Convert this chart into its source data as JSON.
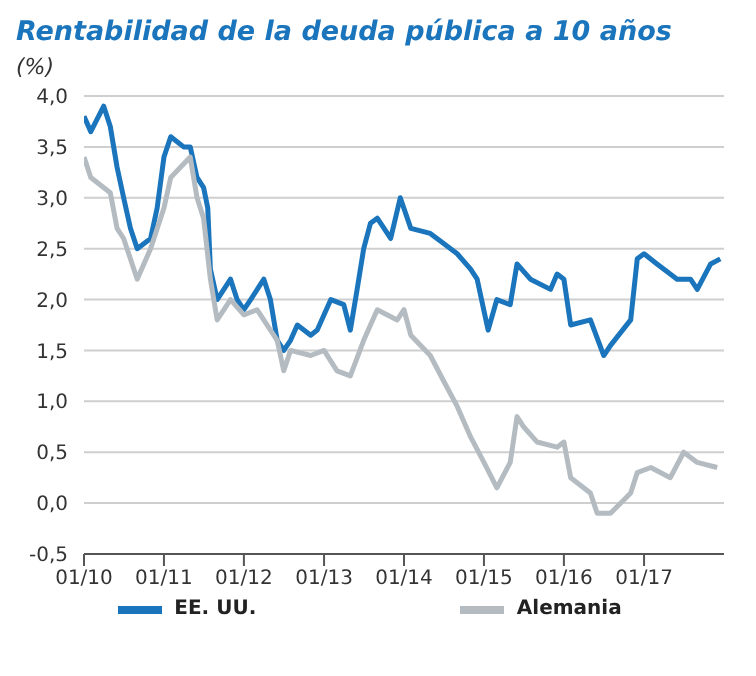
{
  "chart_data": {
    "type": "line",
    "title": "Rentabilidad de la deuda pública a 10 años",
    "ylabel": "(%)",
    "xlim": [
      "2010-01",
      "2018-01"
    ],
    "xticks": [
      {
        "value": "2010-01",
        "label": "01/10"
      },
      {
        "value": "2011-01",
        "label": "01/11"
      },
      {
        "value": "2012-01",
        "label": "01/12"
      },
      {
        "value": "2013-01",
        "label": "01/13"
      },
      {
        "value": "2014-01",
        "label": "01/14"
      },
      {
        "value": "2015-01",
        "label": "01/15"
      },
      {
        "value": "2016-01",
        "label": "01/16"
      },
      {
        "value": "2017-01",
        "label": "01/17"
      }
    ],
    "ylim": [
      -0.5,
      4
    ],
    "yticks": [
      {
        "value": -0.5,
        "label": "-0,5"
      },
      {
        "value": 0,
        "label": "0,0"
      },
      {
        "value": 0.5,
        "label": "0,5"
      },
      {
        "value": 1,
        "label": "1,0"
      },
      {
        "value": 1.5,
        "label": "1,5"
      },
      {
        "value": 2,
        "label": "2,0"
      },
      {
        "value": 2.5,
        "label": "2,5"
      },
      {
        "value": 3,
        "label": "3,0"
      },
      {
        "value": 3.5,
        "label": "3,5"
      },
      {
        "value": 4,
        "label": "4,0"
      }
    ],
    "grid": "y",
    "legend": "bottom",
    "marker": "none",
    "series": [
      {
        "name": "EE. UU.",
        "color": "#1a75bc",
        "x": [
          "2010-01",
          "2010-02",
          "2010-04",
          "2010-05",
          "2010-06",
          "2010-07",
          "2010-08",
          "2010-09",
          "2010-11",
          "2010-12",
          "2011-01",
          "2011-02",
          "2011-04",
          "2011-05",
          "2011-06",
          "2011-07",
          "2011-07-20",
          "2011-08",
          "2011-09",
          "2011-11",
          "2011-12",
          "2012-01",
          "2012-02",
          "2012-04",
          "2012-05",
          "2012-06",
          "2012-07",
          "2012-08",
          "2012-09",
          "2012-11",
          "2012-12",
          "2013-01",
          "2013-02",
          "2013-04",
          "2013-05",
          "2013-06",
          "2013-07",
          "2013-08",
          "2013-09",
          "2013-11",
          "2013-12-15",
          "2014-02",
          "2014-05",
          "2014-07",
          "2014-09",
          "2014-11",
          "2014-12",
          "2015-01-20",
          "2015-03",
          "2015-05",
          "2015-06",
          "2015-08",
          "2015-11",
          "2015-12",
          "2016-01",
          "2016-02",
          "2016-05",
          "2016-07",
          "2016-08",
          "2016-11",
          "2016-12",
          "2017-01",
          "2017-03",
          "2017-06",
          "2017-08",
          "2017-09",
          "2017-11",
          "2017-12-15"
        ],
        "values": [
          3.8,
          3.65,
          3.9,
          3.7,
          3.3,
          3.0,
          2.7,
          2.5,
          2.6,
          2.9,
          3.4,
          3.6,
          3.5,
          3.5,
          3.2,
          3.1,
          2.9,
          2.3,
          2.0,
          2.2,
          2.0,
          1.9,
          2.0,
          2.2,
          2.0,
          1.6,
          1.5,
          1.6,
          1.75,
          1.65,
          1.7,
          1.85,
          2.0,
          1.95,
          1.7,
          2.1,
          2.5,
          2.75,
          2.8,
          2.6,
          3.0,
          2.7,
          2.65,
          2.55,
          2.45,
          2.3,
          2.2,
          1.7,
          2.0,
          1.95,
          2.35,
          2.2,
          2.1,
          2.25,
          2.2,
          1.75,
          1.8,
          1.45,
          1.55,
          1.8,
          2.4,
          2.45,
          2.35,
          2.2,
          2.2,
          2.1,
          2.35,
          2.4
        ]
      },
      {
        "name": "Alemania",
        "color": "#b4bcc2",
        "x": [
          "2010-01",
          "2010-02",
          "2010-05",
          "2010-06",
          "2010-07",
          "2010-09",
          "2010-11",
          "2011-01",
          "2011-02",
          "2011-05",
          "2011-06",
          "2011-07",
          "2011-08",
          "2011-09",
          "2011-11",
          "2012-01",
          "2012-03",
          "2012-06",
          "2012-07",
          "2012-08",
          "2012-11",
          "2013-01",
          "2013-03",
          "2013-05",
          "2013-07",
          "2013-09",
          "2013-12",
          "2014-01",
          "2014-02",
          "2014-05",
          "2014-07",
          "2014-09",
          "2014-11",
          "2015-01",
          "2015-03",
          "2015-05",
          "2015-06",
          "2015-07",
          "2015-09",
          "2015-12",
          "2016-01",
          "2016-02",
          "2016-05",
          "2016-06",
          "2016-08",
          "2016-11",
          "2016-12",
          "2017-02",
          "2017-05",
          "2017-07",
          "2017-09",
          "2017-12"
        ],
        "values": [
          3.4,
          3.2,
          3.05,
          2.7,
          2.6,
          2.2,
          2.5,
          2.9,
          3.2,
          3.4,
          3.0,
          2.8,
          2.2,
          1.8,
          2.0,
          1.85,
          1.9,
          1.6,
          1.3,
          1.5,
          1.45,
          1.5,
          1.3,
          1.25,
          1.6,
          1.9,
          1.8,
          1.9,
          1.65,
          1.45,
          1.2,
          0.95,
          0.65,
          0.4,
          0.15,
          0.4,
          0.85,
          0.75,
          0.6,
          0.55,
          0.6,
          0.25,
          0.1,
          -0.1,
          -0.1,
          0.1,
          0.3,
          0.35,
          0.25,
          0.5,
          0.4,
          0.35
        ]
      }
    ]
  }
}
